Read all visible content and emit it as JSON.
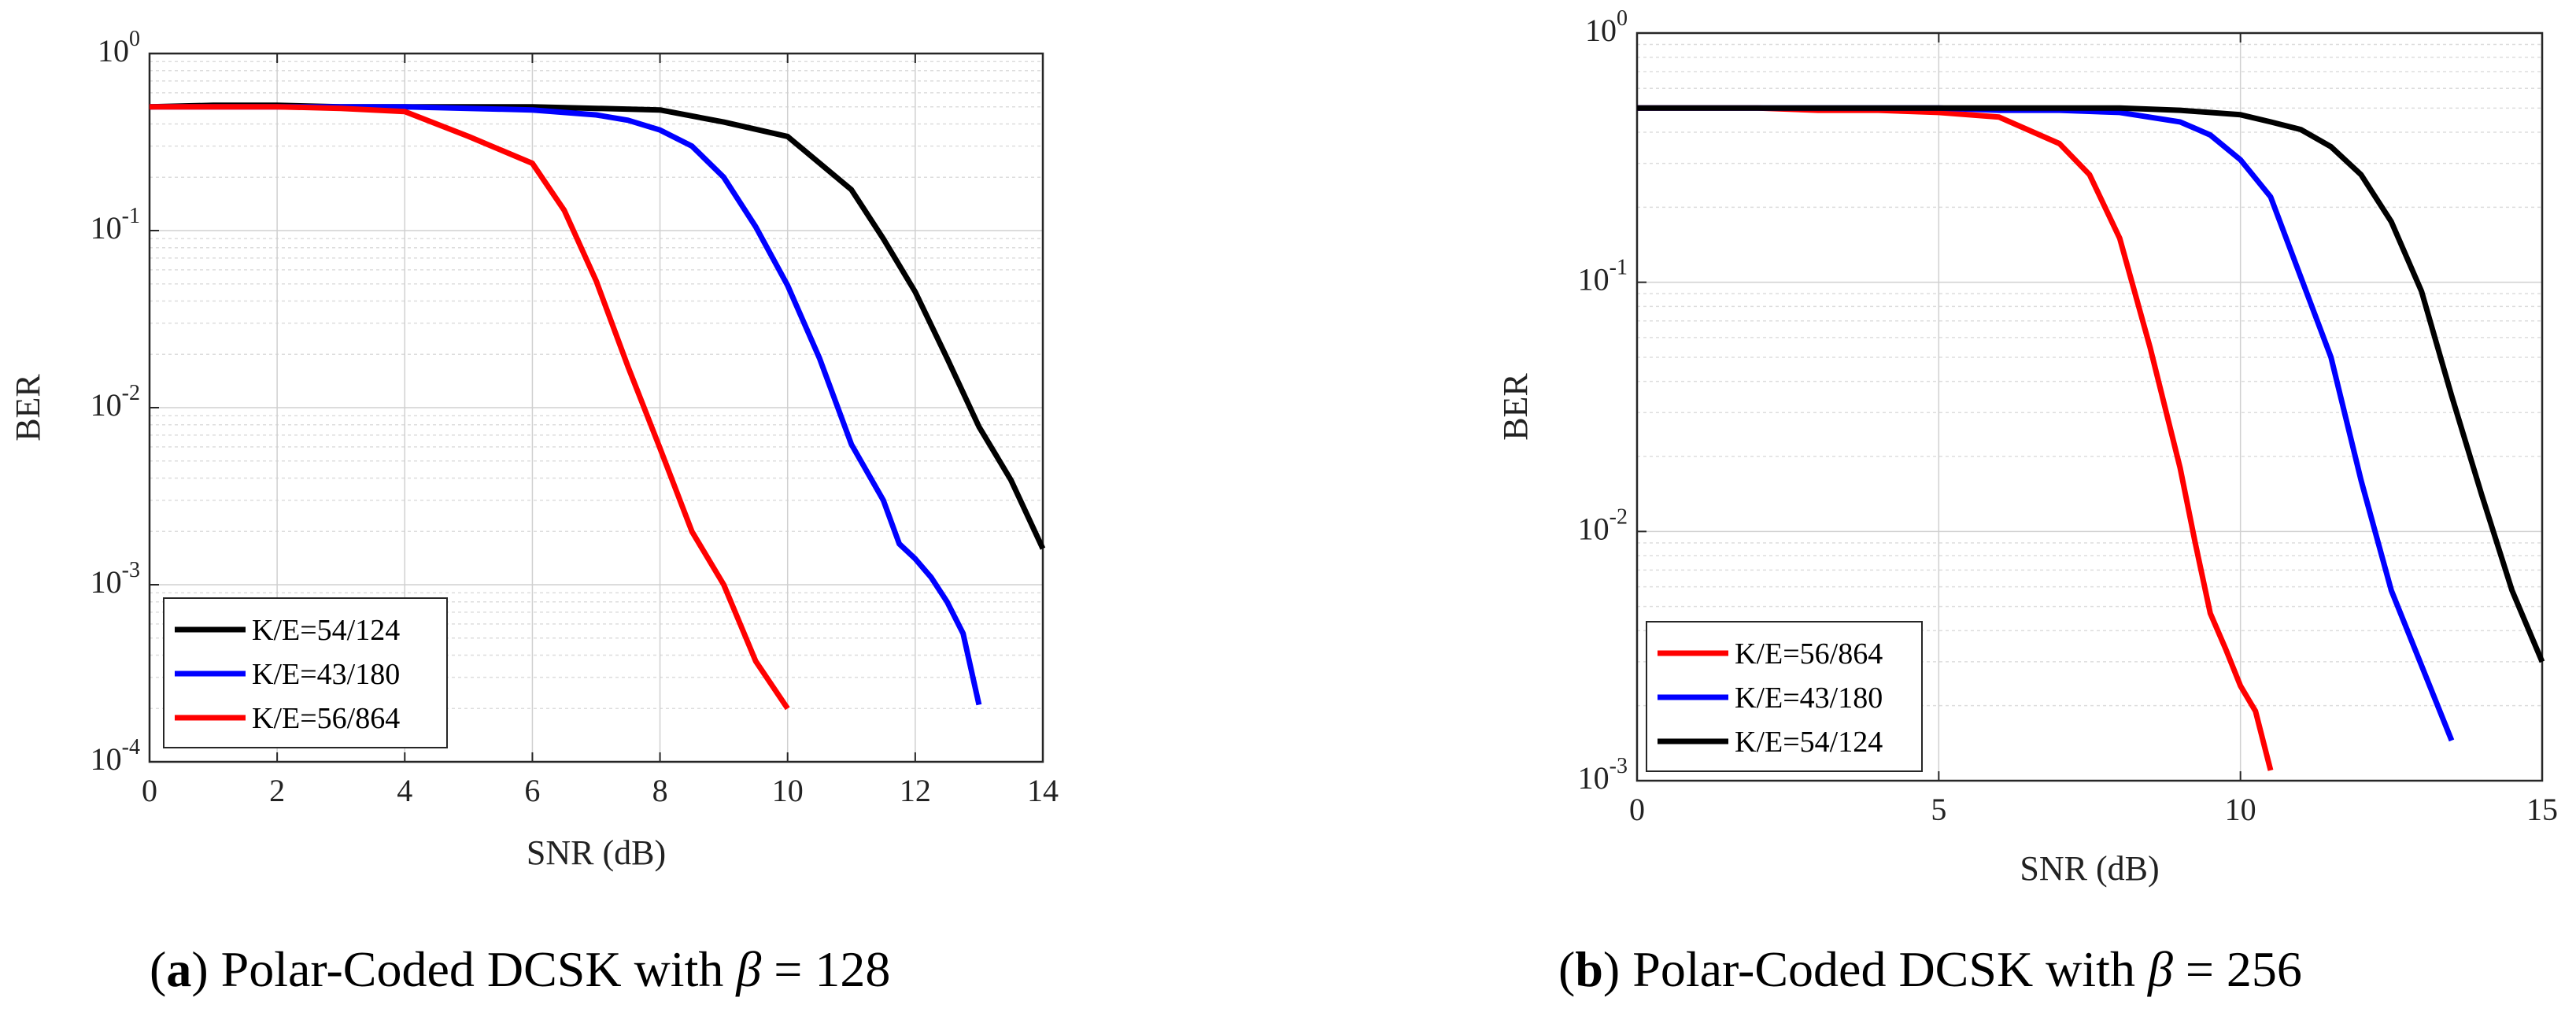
{
  "chart_data": [
    {
      "type": "line",
      "caption_letter": "a",
      "caption_text": "Polar-Coded DCSK with",
      "caption_symbol": "β",
      "caption_value": "= 128",
      "xlabel": "SNR (dB)",
      "ylabel": "BER",
      "xlim": [
        0,
        14
      ],
      "ylim": [
        0.0001,
        1
      ],
      "yscale": "log",
      "grid": true,
      "xticks": [
        0,
        2,
        4,
        6,
        8,
        10,
        12,
        14
      ],
      "yticks": [
        {
          "base": "10",
          "exp": "0",
          "value": 1
        },
        {
          "base": "10",
          "exp": "-1",
          "value": 0.1
        },
        {
          "base": "10",
          "exp": "-2",
          "value": 0.01
        },
        {
          "base": "10",
          "exp": "-3",
          "value": 0.001
        },
        {
          "base": "10",
          "exp": "-4",
          "value": 0.0001
        }
      ],
      "legend_position": "bottom-left",
      "series": [
        {
          "name": "K/E=54/124",
          "color": "#000000",
          "x": [
            0,
            1,
            2,
            3,
            4,
            5,
            6,
            7,
            8,
            9,
            10,
            11,
            11.5,
            12,
            12.5,
            13,
            13.5,
            14
          ],
          "y": [
            0.5,
            0.51,
            0.51,
            0.5,
            0.5,
            0.5,
            0.5,
            0.49,
            0.48,
            0.41,
            0.34,
            0.17,
            0.09,
            0.045,
            0.019,
            0.0078,
            0.0039,
            0.0016
          ]
        },
        {
          "name": "K/E=43/180",
          "color": "#0000ff",
          "x": [
            0,
            1,
            2,
            3,
            4,
            5,
            6,
            7,
            7.5,
            8,
            8.5,
            9,
            9.5,
            10,
            10.5,
            11,
            11.5,
            11.75,
            12,
            12.25,
            12.5,
            12.75,
            13
          ],
          "y": [
            0.5,
            0.5,
            0.5,
            0.5,
            0.5,
            0.49,
            0.48,
            0.45,
            0.42,
            0.37,
            0.3,
            0.2,
            0.105,
            0.049,
            0.019,
            0.0062,
            0.003,
            0.0017,
            0.0014,
            0.0011,
            0.0008,
            0.00053,
            0.00021
          ]
        },
        {
          "name": "K/E=56/864",
          "color": "#ff0000",
          "x": [
            0,
            1,
            2,
            3,
            4,
            5,
            6,
            6.5,
            7,
            7.5,
            8,
            8.5,
            9,
            9.5,
            10
          ],
          "y": [
            0.5,
            0.5,
            0.5,
            0.49,
            0.47,
            0.34,
            0.24,
            0.13,
            0.052,
            0.017,
            0.0059,
            0.002,
            0.001,
            0.00037,
            0.0002
          ]
        }
      ]
    },
    {
      "type": "line",
      "caption_letter": "b",
      "caption_text": "Polar-Coded DCSK with",
      "caption_symbol": "β",
      "caption_value": "= 256",
      "xlabel": "SNR (dB)",
      "ylabel": "BER",
      "xlim": [
        0,
        15
      ],
      "ylim": [
        0.001,
        1
      ],
      "yscale": "log",
      "grid": true,
      "xticks": [
        0,
        5,
        10,
        15
      ],
      "yticks": [
        {
          "base": "10",
          "exp": "0",
          "value": 1
        },
        {
          "base": "10",
          "exp": "-1",
          "value": 0.1
        },
        {
          "base": "10",
          "exp": "-2",
          "value": 0.01
        },
        {
          "base": "10",
          "exp": "-3",
          "value": 0.001
        }
      ],
      "legend_position": "bottom-left",
      "series": [
        {
          "name": "K/E=56/864",
          "color": "#ff0000",
          "x": [
            0,
            1,
            2,
            3,
            4,
            5,
            6,
            7,
            7.5,
            8,
            8.5,
            9,
            9.25,
            9.5,
            9.75,
            10,
            10.25,
            10.5
          ],
          "y": [
            0.5,
            0.5,
            0.5,
            0.49,
            0.49,
            0.48,
            0.46,
            0.36,
            0.27,
            0.15,
            0.055,
            0.018,
            0.009,
            0.0047,
            0.0034,
            0.0024,
            0.0019,
            0.0011
          ]
        },
        {
          "name": "K/E=43/180",
          "color": "#0000ff",
          "x": [
            0,
            1,
            2,
            3,
            4,
            5,
            6,
            7,
            8,
            9,
            9.5,
            10,
            10.5,
            11,
            11.5,
            12,
            12.5,
            13,
            13.5
          ],
          "y": [
            0.5,
            0.5,
            0.5,
            0.5,
            0.5,
            0.5,
            0.49,
            0.49,
            0.48,
            0.44,
            0.39,
            0.31,
            0.22,
            0.105,
            0.05,
            0.016,
            0.0058,
            0.0029,
            0.00145
          ]
        },
        {
          "name": "K/E=54/124",
          "color": "#000000",
          "x": [
            0,
            1,
            2,
            3,
            4,
            5,
            6,
            7,
            8,
            9,
            10,
            10.5,
            11,
            11.5,
            12,
            12.5,
            13,
            13.5,
            14,
            14.5,
            15
          ],
          "y": [
            0.5,
            0.5,
            0.5,
            0.5,
            0.5,
            0.5,
            0.5,
            0.5,
            0.5,
            0.49,
            0.47,
            0.44,
            0.41,
            0.35,
            0.27,
            0.175,
            0.092,
            0.035,
            0.014,
            0.0058,
            0.003
          ]
        }
      ]
    }
  ]
}
